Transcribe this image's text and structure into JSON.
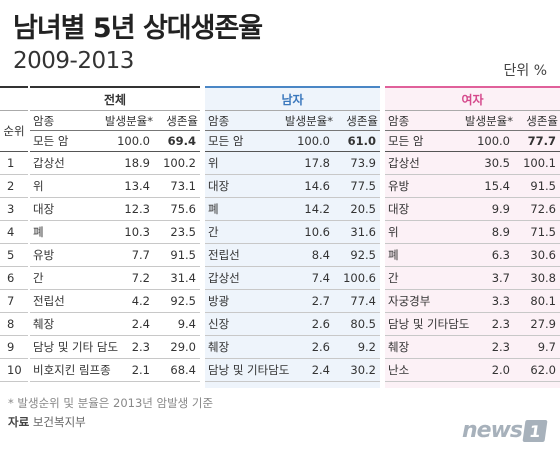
{
  "title": "남녀별 5년 상대생존율",
  "subtitle": "2009-2013",
  "unit": "단위 %",
  "rank_header": "순위",
  "col_headers": {
    "name": "암종",
    "share": "발생분율*",
    "survival": "생존율"
  },
  "panels": {
    "all": {
      "title": "전체"
    },
    "male": {
      "title": "남자"
    },
    "female": {
      "title": "여자"
    }
  },
  "ranks": [
    "1",
    "2",
    "3",
    "4",
    "5",
    "6",
    "7",
    "8",
    "9",
    "10"
  ],
  "all_rows": [
    {
      "name": "모든 암",
      "share": "100.0",
      "survival": "69.4"
    },
    {
      "name": "갑상선",
      "share": "18.9",
      "survival": "100.2"
    },
    {
      "name": "위",
      "share": "13.4",
      "survival": "73.1"
    },
    {
      "name": "대장",
      "share": "12.3",
      "survival": "75.6"
    },
    {
      "name": "폐",
      "share": "10.3",
      "survival": "23.5"
    },
    {
      "name": "유방",
      "share": "7.7",
      "survival": "91.5"
    },
    {
      "name": "간",
      "share": "7.2",
      "survival": "31.4"
    },
    {
      "name": "전립선",
      "share": "4.2",
      "survival": "92.5"
    },
    {
      "name": "췌장",
      "share": "2.4",
      "survival": "9.4"
    },
    {
      "name": "담낭 및 기타 담도",
      "share": "2.3",
      "survival": "29.0"
    },
    {
      "name": "비호지킨 림프종",
      "share": "2.1",
      "survival": "68.4"
    }
  ],
  "male_rows": [
    {
      "name": "모든 암",
      "share": "100.0",
      "survival": "61.0"
    },
    {
      "name": "위",
      "share": "17.8",
      "survival": "73.9"
    },
    {
      "name": "대장",
      "share": "14.6",
      "survival": "77.5"
    },
    {
      "name": "폐",
      "share": "14.2",
      "survival": "20.5"
    },
    {
      "name": "간",
      "share": "10.6",
      "survival": "31.6"
    },
    {
      "name": "전립선",
      "share": "8.4",
      "survival": "92.5"
    },
    {
      "name": "갑상선",
      "share": "7.4",
      "survival": "100.6"
    },
    {
      "name": "방광",
      "share": "2.7",
      "survival": "77.4"
    },
    {
      "name": "신장",
      "share": "2.6",
      "survival": "80.5"
    },
    {
      "name": "췌장",
      "share": "2.6",
      "survival": "9.2"
    },
    {
      "name": "담낭 및 기타담도",
      "share": "2.4",
      "survival": "30.2"
    }
  ],
  "female_rows": [
    {
      "name": "모든 암",
      "share": "100.0",
      "survival": "77.7"
    },
    {
      "name": "갑상선",
      "share": "30.5",
      "survival": "100.1"
    },
    {
      "name": "유방",
      "share": "15.4",
      "survival": "91.5"
    },
    {
      "name": "대장",
      "share": "9.9",
      "survival": "72.6"
    },
    {
      "name": "위",
      "share": "8.9",
      "survival": "71.5"
    },
    {
      "name": "폐",
      "share": "6.3",
      "survival": "30.6"
    },
    {
      "name": "간",
      "share": "3.7",
      "survival": "30.8"
    },
    {
      "name": "자궁경부",
      "share": "3.3",
      "survival": "80.1"
    },
    {
      "name": "담낭 및 기타담도",
      "share": "2.3",
      "survival": "27.9"
    },
    {
      "name": "췌장",
      "share": "2.3",
      "survival": "9.7"
    },
    {
      "name": "난소",
      "share": "2.0",
      "survival": "62.0"
    }
  ],
  "note": "* 발생순위 및 분율은 2013년 암발생 기준",
  "source_label": "자료",
  "source_text": "보건복지부",
  "logo_text": "news",
  "logo_mark": "1",
  "colors": {
    "male_accent": "#3b78bd",
    "female_accent": "#d54a8c",
    "male_bg": "#eef4fb",
    "female_bg": "#fcf1f6"
  }
}
